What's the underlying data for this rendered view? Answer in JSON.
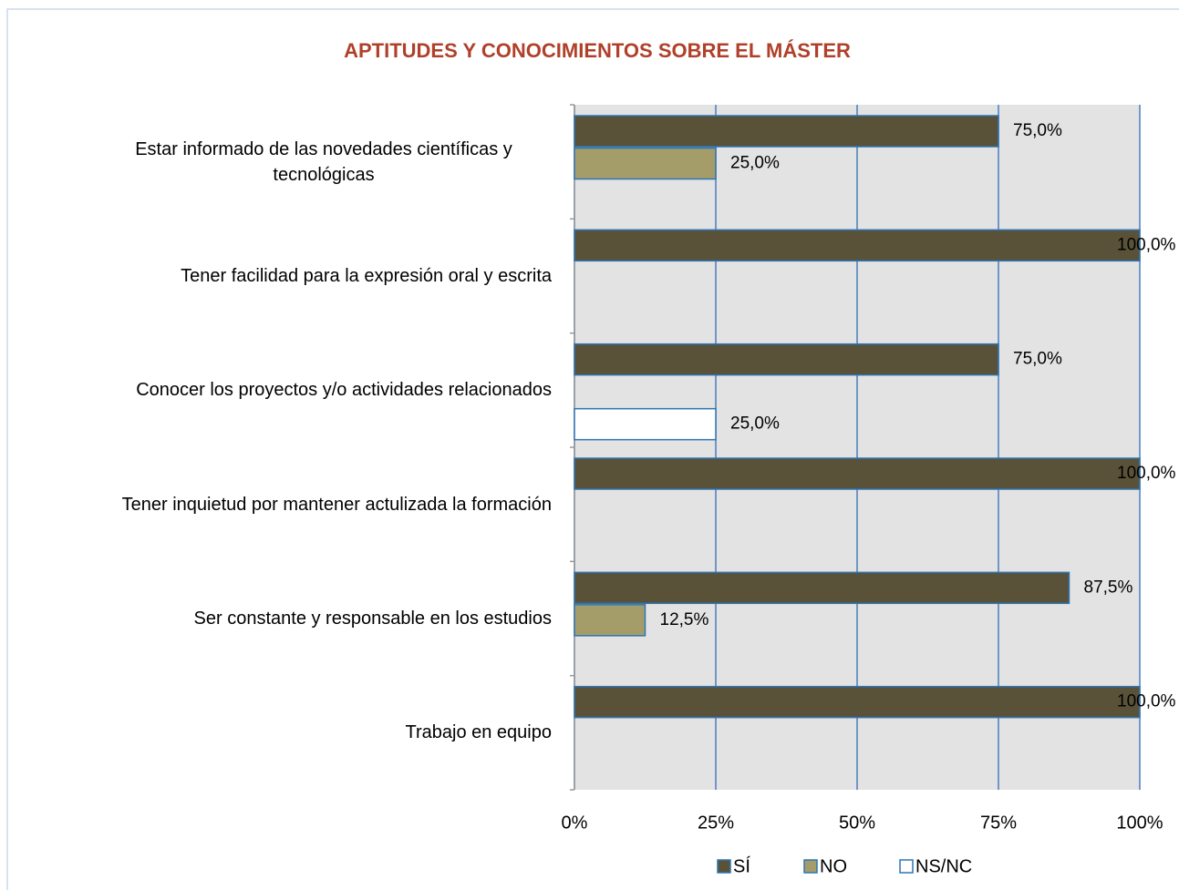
{
  "chart_data": {
    "type": "hbar",
    "title": "APTITUDES Y CONOCIMIENTOS SOBRE EL MÁSTER",
    "categories": [
      "Estar informado de las novedades científicas y tecnológicas",
      "Tener facilidad para la expresión oral y escrita",
      "Conocer los proyectos y/o actividades relacionados",
      "Tener inquietud por mantener actulizada la formación",
      "Ser constante y responsable en los estudios",
      "Trabajo en equipo"
    ],
    "series": [
      {
        "name": "SÍ",
        "color": "#595238",
        "values": [
          75,
          100,
          75,
          100,
          87.5,
          100
        ],
        "value_labels": [
          "75,0%",
          "100,0%",
          "75,0%",
          "100,0%",
          "87,5%",
          "100,0%"
        ]
      },
      {
        "name": "NO",
        "color": "#a59d69",
        "values": [
          25,
          null,
          null,
          null,
          12.5,
          null
        ],
        "value_labels": [
          "25,0%",
          null,
          null,
          null,
          "12,5%",
          null
        ]
      },
      {
        "name": "NS/NC",
        "color": "#ffffff",
        "values": [
          null,
          null,
          25,
          null,
          null,
          null
        ],
        "value_labels": [
          null,
          null,
          "25,0%",
          null,
          null,
          null
        ]
      }
    ],
    "xlim": [
      0,
      100
    ],
    "xticks": [
      {
        "value": 0,
        "label": "0%"
      },
      {
        "value": 25,
        "label": "25%"
      },
      {
        "value": 50,
        "label": "50%"
      },
      {
        "value": 75,
        "label": "75%"
      },
      {
        "value": 100,
        "label": "100%"
      }
    ],
    "grid": true,
    "legend": "bottom"
  }
}
